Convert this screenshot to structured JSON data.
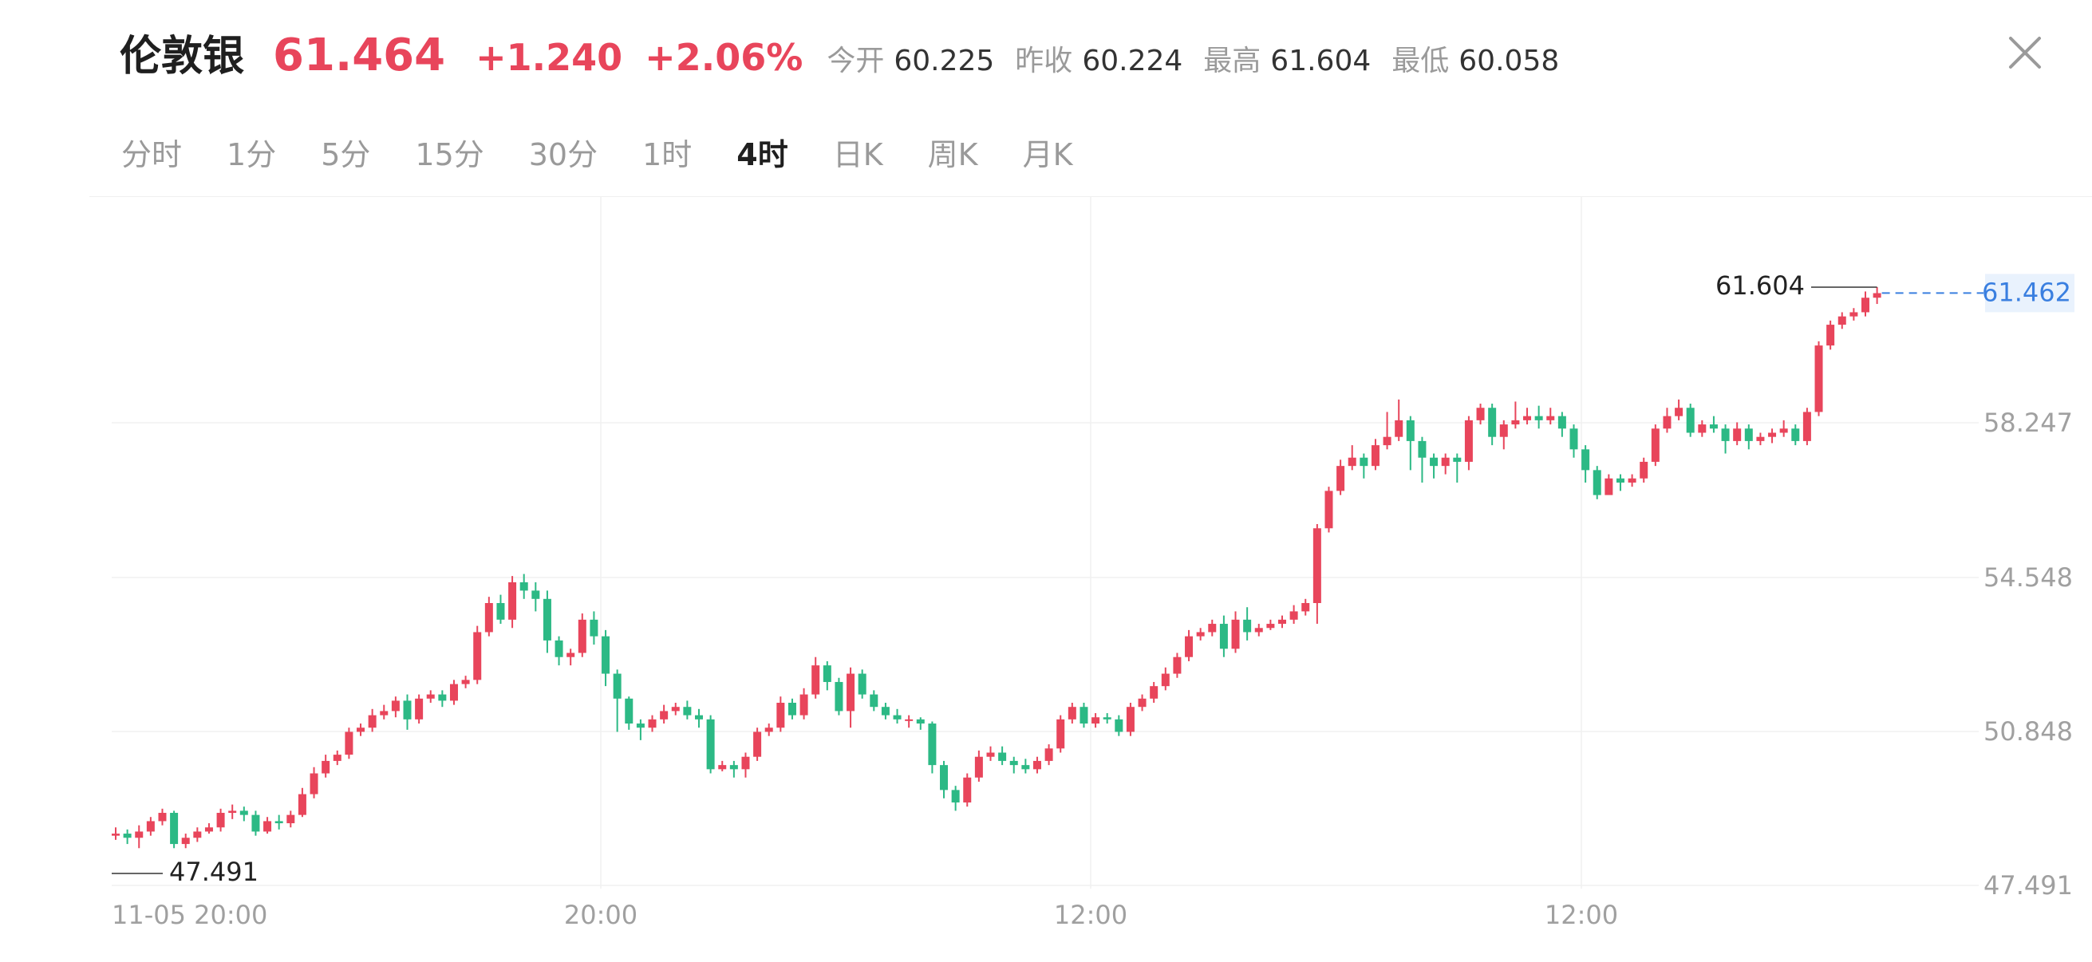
{
  "header": {
    "title": "伦敦银",
    "price": "61.464",
    "change": "+1.240",
    "change_pct": "+2.06%",
    "stats": [
      {
        "label": "今开",
        "value": "60.225"
      },
      {
        "label": "昨收",
        "value": "60.224"
      },
      {
        "label": "最高",
        "value": "61.604"
      },
      {
        "label": "最低",
        "value": "60.058"
      }
    ]
  },
  "close_icon": "close-icon",
  "tabs": [
    {
      "label": "分时"
    },
    {
      "label": "1分"
    },
    {
      "label": "5分"
    },
    {
      "label": "15分"
    },
    {
      "label": "30分"
    },
    {
      "label": "1时"
    },
    {
      "label": "4时",
      "active": true
    },
    {
      "label": "日K"
    },
    {
      "label": "周K"
    },
    {
      "label": "月K"
    }
  ],
  "colors": {
    "up": "#e8455b",
    "down": "#2cb985",
    "last_price_line": "#3a7fe0",
    "last_price_bg": "#e9f2fd",
    "grid": "#f0f0f0",
    "axis_text": "#a0a0a0"
  },
  "chart_data": {
    "type": "candlestick",
    "y_ticks": [
      "58.247",
      "54.548",
      "50.848",
      "47.491"
    ],
    "x_ticks": [
      "11-05 20:00",
      "20:00",
      "12:00",
      "12:00"
    ],
    "ylim": [
      47.491,
      61.604
    ],
    "high_marker": "61.604",
    "low_marker": "47.491",
    "last_price": "61.462",
    "candles": [
      [
        48.4,
        48.45,
        48.6,
        48.3
      ],
      [
        48.45,
        48.35,
        48.55,
        48.2
      ],
      [
        48.35,
        48.5,
        48.65,
        48.1
      ],
      [
        48.5,
        48.75,
        48.85,
        48.4
      ],
      [
        48.75,
        48.95,
        49.05,
        48.65
      ],
      [
        48.95,
        48.2,
        49.0,
        48.1
      ],
      [
        48.2,
        48.35,
        48.45,
        48.1
      ],
      [
        48.35,
        48.5,
        48.6,
        48.25
      ],
      [
        48.5,
        48.6,
        48.7,
        48.45
      ],
      [
        48.6,
        48.95,
        49.05,
        48.5
      ],
      [
        48.95,
        49.0,
        49.15,
        48.8
      ],
      [
        49.0,
        48.9,
        49.1,
        48.75
      ],
      [
        48.9,
        48.5,
        49.0,
        48.4
      ],
      [
        48.5,
        48.75,
        48.85,
        48.45
      ],
      [
        48.75,
        48.7,
        48.9,
        48.55
      ],
      [
        48.7,
        48.9,
        49.0,
        48.6
      ],
      [
        48.9,
        49.4,
        49.55,
        48.85
      ],
      [
        49.4,
        49.9,
        50.05,
        49.3
      ],
      [
        49.9,
        50.2,
        50.35,
        49.8
      ],
      [
        50.2,
        50.35,
        50.45,
        50.1
      ],
      [
        50.35,
        50.9,
        51.0,
        50.25
      ],
      [
        50.9,
        51.0,
        51.1,
        50.8
      ],
      [
        51.0,
        51.3,
        51.45,
        50.9
      ],
      [
        51.3,
        51.4,
        51.55,
        51.2
      ],
      [
        51.4,
        51.65,
        51.75,
        51.25
      ],
      [
        51.65,
        51.2,
        51.8,
        50.95
      ],
      [
        51.2,
        51.7,
        51.8,
        51.1
      ],
      [
        51.7,
        51.8,
        51.9,
        51.6
      ],
      [
        51.8,
        51.65,
        51.9,
        51.5
      ],
      [
        51.65,
        52.05,
        52.15,
        51.55
      ],
      [
        52.05,
        52.15,
        52.25,
        51.95
      ],
      [
        52.15,
        53.3,
        53.45,
        52.05
      ],
      [
        53.3,
        54.0,
        54.15,
        53.2
      ],
      [
        54.0,
        53.6,
        54.2,
        53.5
      ],
      [
        53.6,
        54.5,
        54.65,
        53.4
      ],
      [
        54.5,
        54.3,
        54.7,
        54.1
      ],
      [
        54.3,
        54.1,
        54.5,
        53.8
      ],
      [
        54.1,
        53.1,
        54.3,
        52.8
      ],
      [
        53.1,
        52.7,
        53.2,
        52.5
      ],
      [
        52.7,
        52.8,
        52.9,
        52.5
      ],
      [
        52.8,
        53.6,
        53.75,
        52.7
      ],
      [
        53.6,
        53.2,
        53.8,
        53.0
      ],
      [
        53.2,
        52.3,
        53.35,
        52.0
      ],
      [
        52.3,
        51.7,
        52.4,
        50.9
      ],
      [
        51.7,
        51.1,
        51.75,
        50.95
      ],
      [
        51.1,
        51.0,
        51.2,
        50.7
      ],
      [
        51.0,
        51.2,
        51.3,
        50.9
      ],
      [
        51.2,
        51.4,
        51.55,
        51.1
      ],
      [
        51.4,
        51.5,
        51.6,
        51.3
      ],
      [
        51.5,
        51.3,
        51.65,
        51.2
      ],
      [
        51.3,
        51.2,
        51.45,
        51.0
      ],
      [
        51.2,
        50.0,
        51.3,
        49.9
      ],
      [
        50.0,
        50.1,
        50.2,
        49.95
      ],
      [
        50.1,
        50.0,
        50.2,
        49.8
      ],
      [
        50.0,
        50.3,
        50.4,
        49.8
      ],
      [
        50.3,
        50.9,
        51.0,
        50.2
      ],
      [
        50.9,
        51.0,
        51.1,
        50.8
      ],
      [
        51.0,
        51.6,
        51.75,
        50.9
      ],
      [
        51.6,
        51.3,
        51.7,
        51.2
      ],
      [
        51.3,
        51.8,
        51.95,
        51.2
      ],
      [
        51.8,
        52.5,
        52.7,
        51.7
      ],
      [
        52.5,
        52.1,
        52.6,
        51.9
      ],
      [
        52.1,
        51.4,
        52.2,
        51.3
      ],
      [
        51.4,
        52.3,
        52.45,
        51.0
      ],
      [
        52.3,
        51.8,
        52.4,
        51.7
      ],
      [
        51.8,
        51.5,
        51.9,
        51.4
      ],
      [
        51.5,
        51.3,
        51.6,
        51.2
      ],
      [
        51.3,
        51.2,
        51.45,
        51.1
      ],
      [
        51.2,
        51.2,
        51.3,
        51.0
      ],
      [
        51.2,
        51.1,
        51.25,
        50.95
      ],
      [
        51.1,
        50.1,
        51.15,
        49.9
      ],
      [
        50.1,
        49.5,
        50.2,
        49.3
      ],
      [
        49.5,
        49.2,
        49.6,
        49.0
      ],
      [
        49.2,
        49.8,
        49.9,
        49.1
      ],
      [
        49.8,
        50.3,
        50.45,
        49.7
      ],
      [
        50.3,
        50.4,
        50.55,
        50.2
      ],
      [
        50.4,
        50.2,
        50.55,
        50.1
      ],
      [
        50.2,
        50.1,
        50.3,
        49.9
      ],
      [
        50.1,
        50.0,
        50.25,
        49.9
      ],
      [
        50.0,
        50.2,
        50.3,
        49.9
      ],
      [
        50.2,
        50.5,
        50.6,
        50.1
      ],
      [
        50.5,
        51.2,
        51.3,
        50.4
      ],
      [
        51.2,
        51.5,
        51.6,
        51.1
      ],
      [
        51.5,
        51.1,
        51.6,
        51.0
      ],
      [
        51.1,
        51.25,
        51.35,
        51.0
      ],
      [
        51.25,
        51.2,
        51.35,
        51.1
      ],
      [
        51.2,
        50.9,
        51.3,
        50.8
      ],
      [
        50.9,
        51.5,
        51.6,
        50.8
      ],
      [
        51.5,
        51.7,
        51.8,
        51.4
      ],
      [
        51.7,
        52.0,
        52.1,
        51.6
      ],
      [
        52.0,
        52.3,
        52.45,
        51.9
      ],
      [
        52.3,
        52.7,
        52.8,
        52.2
      ],
      [
        52.7,
        53.2,
        53.35,
        52.6
      ],
      [
        53.2,
        53.3,
        53.4,
        53.1
      ],
      [
        53.3,
        53.5,
        53.6,
        53.2
      ],
      [
        53.5,
        52.9,
        53.7,
        52.7
      ],
      [
        52.9,
        53.6,
        53.8,
        52.8
      ],
      [
        53.6,
        53.3,
        53.9,
        53.1
      ],
      [
        53.3,
        53.4,
        53.5,
        53.2
      ],
      [
        53.4,
        53.5,
        53.6,
        53.35
      ],
      [
        53.5,
        53.6,
        53.7,
        53.4
      ],
      [
        53.6,
        53.8,
        53.95,
        53.5
      ],
      [
        53.8,
        54.0,
        54.1,
        53.7
      ],
      [
        54.0,
        55.8,
        55.9,
        53.5
      ],
      [
        55.8,
        56.7,
        56.8,
        55.7
      ],
      [
        56.7,
        57.3,
        57.45,
        56.6
      ],
      [
        57.3,
        57.5,
        57.8,
        57.2
      ],
      [
        57.5,
        57.3,
        57.6,
        57.0
      ],
      [
        57.3,
        57.8,
        57.95,
        57.2
      ],
      [
        57.8,
        58.0,
        58.6,
        57.7
      ],
      [
        58.0,
        58.4,
        58.9,
        57.9
      ],
      [
        58.4,
        57.9,
        58.5,
        57.2
      ],
      [
        57.9,
        57.5,
        58.0,
        56.9
      ],
      [
        57.5,
        57.3,
        57.6,
        57.0
      ],
      [
        57.3,
        57.5,
        57.6,
        57.1
      ],
      [
        57.5,
        57.4,
        57.6,
        56.9
      ],
      [
        57.4,
        58.4,
        58.5,
        57.2
      ],
      [
        58.4,
        58.7,
        58.8,
        58.3
      ],
      [
        58.7,
        58.0,
        58.8,
        57.8
      ],
      [
        58.0,
        58.3,
        58.4,
        57.7
      ],
      [
        58.3,
        58.4,
        58.85,
        58.2
      ],
      [
        58.4,
        58.5,
        58.7,
        58.3
      ],
      [
        58.5,
        58.4,
        58.75,
        58.2
      ],
      [
        58.4,
        58.5,
        58.7,
        58.3
      ],
      [
        58.5,
        58.2,
        58.6,
        58.0
      ],
      [
        58.2,
        57.7,
        58.3,
        57.5
      ],
      [
        57.7,
        57.2,
        57.8,
        56.9
      ],
      [
        57.2,
        56.6,
        57.3,
        56.5
      ],
      [
        56.6,
        57.0,
        57.1,
        56.9
      ],
      [
        57.0,
        56.9,
        57.1,
        56.7
      ],
      [
        56.9,
        57.0,
        57.1,
        56.8
      ],
      [
        57.0,
        57.4,
        57.5,
        56.9
      ],
      [
        57.4,
        58.2,
        58.3,
        57.3
      ],
      [
        58.2,
        58.5,
        58.7,
        58.1
      ],
      [
        58.5,
        58.7,
        58.9,
        58.4
      ],
      [
        58.7,
        58.1,
        58.8,
        58.0
      ],
      [
        58.1,
        58.3,
        58.4,
        58.0
      ],
      [
        58.3,
        58.2,
        58.5,
        58.1
      ],
      [
        58.2,
        57.9,
        58.3,
        57.6
      ],
      [
        57.9,
        58.2,
        58.35,
        57.8
      ],
      [
        58.2,
        57.9,
        58.3,
        57.7
      ],
      [
        57.9,
        58.0,
        58.1,
        57.8
      ],
      [
        58.0,
        58.1,
        58.2,
        57.85
      ],
      [
        58.1,
        58.2,
        58.4,
        58.0
      ],
      [
        58.2,
        57.9,
        58.3,
        57.8
      ],
      [
        57.9,
        58.6,
        58.7,
        57.8
      ],
      [
        58.6,
        60.2,
        60.3,
        58.5
      ],
      [
        60.2,
        60.7,
        60.8,
        60.1
      ],
      [
        60.7,
        60.9,
        61.0,
        60.6
      ],
      [
        60.9,
        61.0,
        61.1,
        60.8
      ],
      [
        61.0,
        61.35,
        61.5,
        60.9
      ],
      [
        61.35,
        61.46,
        61.604,
        61.2
      ]
    ]
  }
}
